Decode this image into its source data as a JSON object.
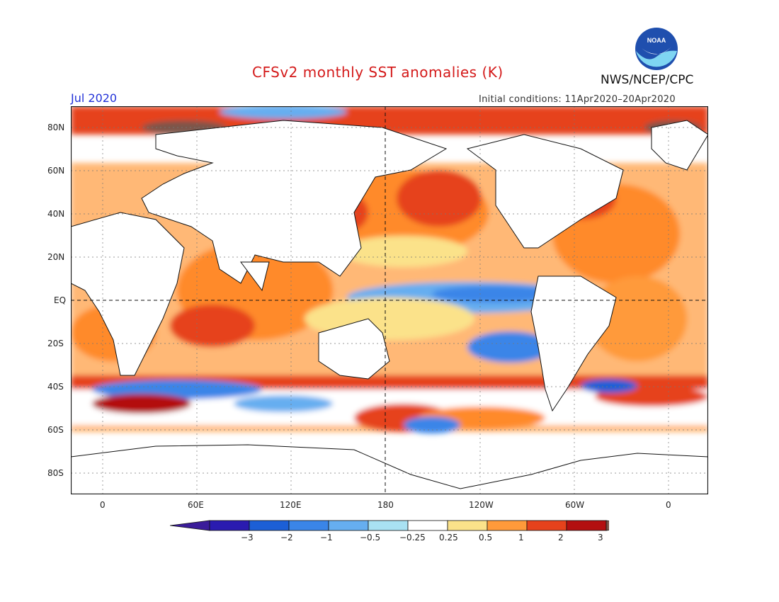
{
  "header": {
    "title": "CFSv2 monthly SST anomalies (K)",
    "agency": "NWS/NCEP/CPC",
    "logo_text": "NOAA",
    "month": "Jul 2020",
    "initial_conditions": "Initial conditions: 11Apr2020–20Apr2020"
  },
  "axes": {
    "lat_labels": [
      "80N",
      "60N",
      "40N",
      "20N",
      "EQ",
      "20S",
      "40S",
      "60S",
      "80S"
    ],
    "lon_labels": [
      "0",
      "60E",
      "120E",
      "180",
      "120W",
      "60W",
      "0"
    ]
  },
  "colorbar": {
    "labels": [
      "−3",
      "−2",
      "−1",
      "−0.5",
      "−0.25",
      "0.25",
      "0.5",
      "1",
      "2",
      "3"
    ],
    "colors": [
      "#2a1bb0",
      "#1c5fd6",
      "#3a85e8",
      "#66aef0",
      "#a9e1f2",
      "#ffffff",
      "#fbe28a",
      "#ff9a3a",
      "#e6421c",
      "#b30f10"
    ],
    "low_cap_color": "#3b1c9a",
    "high_cap_color": "#7b5549"
  }
}
